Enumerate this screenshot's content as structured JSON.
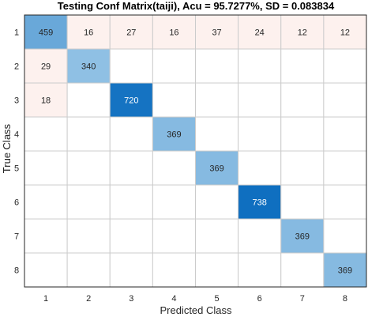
{
  "chart_data": {
    "type": "heatmap",
    "title": "Testing Conf Matrix(taiji), Acu = 95.7277%, SD = 0.083834",
    "xlabel": "Predicted Class",
    "ylabel": "True Class",
    "x_categories": [
      "1",
      "2",
      "3",
      "4",
      "5",
      "6",
      "7",
      "8"
    ],
    "y_categories": [
      "1",
      "2",
      "3",
      "4",
      "5",
      "6",
      "7",
      "8"
    ],
    "matrix": [
      [
        459,
        16,
        27,
        16,
        37,
        24,
        12,
        12
      ],
      [
        29,
        340,
        null,
        null,
        null,
        null,
        null,
        null
      ],
      [
        18,
        null,
        720,
        null,
        null,
        null,
        null,
        null
      ],
      [
        null,
        null,
        null,
        369,
        null,
        null,
        null,
        null
      ],
      [
        null,
        null,
        null,
        null,
        369,
        null,
        null,
        null
      ],
      [
        null,
        null,
        null,
        null,
        null,
        738,
        null,
        null
      ],
      [
        null,
        null,
        null,
        null,
        null,
        null,
        369,
        null
      ],
      [
        null,
        null,
        null,
        null,
        null,
        null,
        null,
        369
      ]
    ],
    "colors": {
      "offdiag_tint": "#fdf1ee",
      "diag_low": "#8fc0e4",
      "diag_high": "#0f6fc0",
      "grid": "#cccccc",
      "border": "#262626"
    }
  }
}
